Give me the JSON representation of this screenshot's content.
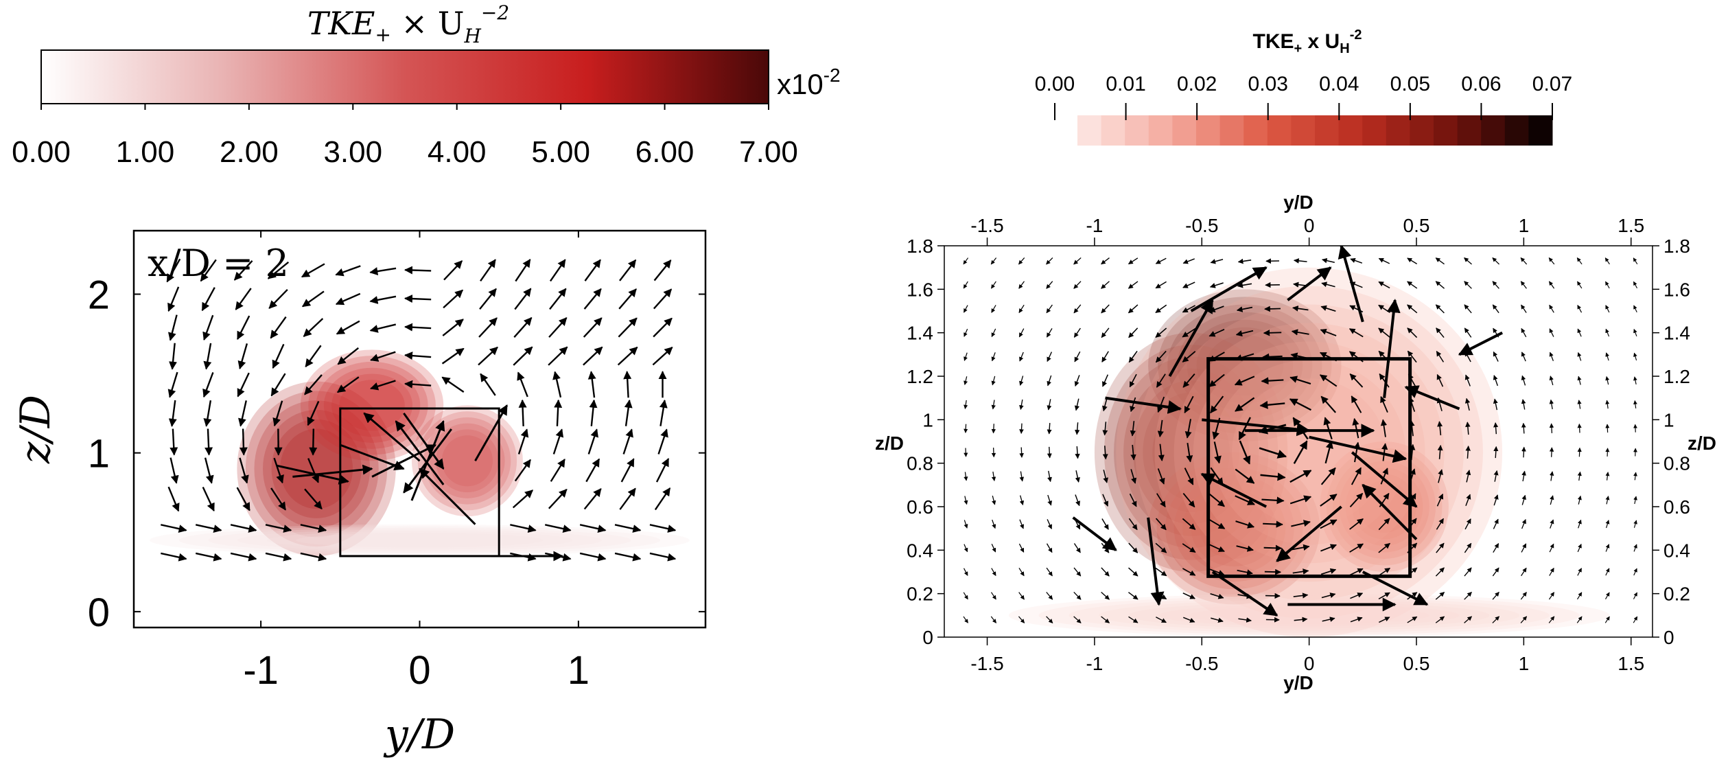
{
  "chart_data": [
    {
      "type": "heatmap",
      "panel": "left",
      "colorbar": {
        "title": "TKE",
        "title_sub": "+",
        "title_mid": " × U",
        "title_sub2": "H",
        "title_sup": "−2",
        "multiplier_base": "x10",
        "multiplier_exp": "-2",
        "ticks": [
          "0.00",
          "1.00",
          "2.00",
          "3.00",
          "4.00",
          "5.00",
          "6.00",
          "7.00"
        ],
        "range": [
          0,
          7
        ],
        "colors": [
          "#ffffff",
          "#e9b3b3",
          "#d45555",
          "#c81e1e",
          "#4a0808"
        ]
      },
      "annotation": "x/D = 2",
      "xlabel": "y/D",
      "ylabel": "z/D",
      "xlim": [
        -1.8,
        1.8
      ],
      "ylim": [
        -0.1,
        2.4
      ],
      "xticks": [
        {
          "v": -1,
          "label": "-1"
        },
        {
          "v": 0,
          "label": "0"
        },
        {
          "v": 1,
          "label": "1"
        }
      ],
      "yticks": [
        {
          "v": 0,
          "label": "0"
        },
        {
          "v": 1,
          "label": "1"
        },
        {
          "v": 2,
          "label": "2"
        }
      ],
      "box": {
        "y": [
          -0.5,
          0.5
        ],
        "z": [
          0.35,
          1.28
        ]
      },
      "tke_blobs": [
        {
          "y": -0.65,
          "z": 0.9,
          "ry": 0.5,
          "rz": 0.55,
          "value": 5.6
        },
        {
          "y": -0.3,
          "z": 1.3,
          "ry": 0.45,
          "rz": 0.35,
          "value": 4.8
        },
        {
          "y": 0.3,
          "z": 0.95,
          "ry": 0.35,
          "rz": 0.35,
          "value": 3.8
        },
        {
          "y": 0.0,
          "z": 0.45,
          "ry": 1.7,
          "rz": 0.1,
          "value": 0.6
        }
      ],
      "vectors": [
        {
          "y": -0.9,
          "z": 0.92,
          "u": 0.45,
          "w": -0.1
        },
        {
          "y": -0.8,
          "z": 0.85,
          "u": 0.5,
          "w": 0.05
        },
        {
          "y": -0.3,
          "z": 0.85,
          "u": 0.4,
          "w": 0.2
        },
        {
          "y": 0.15,
          "z": 0.8,
          "u": -0.3,
          "w": 0.4
        },
        {
          "y": 0.35,
          "z": 0.55,
          "u": -0.35,
          "w": 0.35
        },
        {
          "y": -0.05,
          "z": 0.7,
          "u": 0.2,
          "w": 0.5
        },
        {
          "y": 0.2,
          "z": 1.15,
          "u": -0.3,
          "w": -0.4
        },
        {
          "y": -0.1,
          "z": 1.25,
          "u": 0.25,
          "w": -0.35
        },
        {
          "y": -0.5,
          "z": 1.05,
          "u": 0.4,
          "w": -0.15
        },
        {
          "y": 0.0,
          "z": 0.95,
          "u": -0.35,
          "w": 0.3
        },
        {
          "y": 0.45,
          "z": 0.35,
          "u": 0.45,
          "w": 0.0
        },
        {
          "y": 0.35,
          "z": 0.95,
          "u": 0.2,
          "w": 0.35
        }
      ]
    },
    {
      "type": "heatmap",
      "panel": "right",
      "colorbar": {
        "title": "TKE",
        "title_sub": "+",
        "title_mid": " x U",
        "title_sub2": "H",
        "title_sup": "-2",
        "ticks": [
          "0.00",
          "0.01",
          "0.02",
          "0.03",
          "0.04",
          "0.05",
          "0.06",
          "0.07"
        ],
        "range": [
          0,
          0.07
        ],
        "levels": 20,
        "colors": [
          "#fde9e6",
          "#f4a89c",
          "#de5a45",
          "#b82c1f",
          "#6e120c",
          "#000000"
        ]
      },
      "xlabel": "y/D",
      "ylabel": "z/D",
      "xlim": [
        -1.7,
        1.6
      ],
      "ylim": [
        0,
        1.8
      ],
      "xticks": [
        {
          "v": -1.5,
          "label": "-1.5"
        },
        {
          "v": -1,
          "label": "-1"
        },
        {
          "v": -0.5,
          "label": "-0.5"
        },
        {
          "v": 0,
          "label": "0"
        },
        {
          "v": 0.5,
          "label": "0.5"
        },
        {
          "v": 1,
          "label": "1"
        },
        {
          "v": 1.5,
          "label": "1.5"
        }
      ],
      "yticks": [
        {
          "v": 0,
          "label": "0"
        },
        {
          "v": 0.2,
          "label": "0.2"
        },
        {
          "v": 0.4,
          "label": "0.4"
        },
        {
          "v": 0.6,
          "label": "0.6"
        },
        {
          "v": 0.8,
          "label": "0.8"
        },
        {
          "v": 1,
          "label": "1"
        },
        {
          "v": 1.2,
          "label": "1.2"
        },
        {
          "v": 1.4,
          "label": "1.4"
        },
        {
          "v": 1.6,
          "label": "1.6"
        },
        {
          "v": 1.8,
          "label": "1.8"
        }
      ],
      "box": {
        "y": [
          -0.47,
          0.47
        ],
        "z": [
          0.28,
          1.28
        ]
      },
      "tke_blobs": [
        {
          "y": -0.3,
          "z": 1.25,
          "ry": 0.45,
          "rz": 0.35,
          "value": 0.058
        },
        {
          "y": -0.55,
          "z": 0.85,
          "ry": 0.45,
          "rz": 0.55,
          "value": 0.05
        },
        {
          "y": -0.35,
          "z": 0.5,
          "ry": 0.4,
          "rz": 0.35,
          "value": 0.042
        },
        {
          "y": 0.35,
          "z": 0.6,
          "ry": 0.3,
          "rz": 0.3,
          "value": 0.028
        },
        {
          "y": 0.0,
          "z": 0.85,
          "ry": 0.9,
          "rz": 0.85,
          "value": 0.014
        },
        {
          "y": 0.0,
          "z": 0.1,
          "ry": 1.4,
          "rz": 0.1,
          "value": 0.004
        }
      ],
      "vectors": [
        {
          "y": -0.5,
          "z": 1.0,
          "u": 0.5,
          "w": -0.05
        },
        {
          "y": -0.3,
          "z": 0.95,
          "u": 0.6,
          "w": 0.0
        },
        {
          "y": 0.0,
          "z": 0.92,
          "u": 0.45,
          "w": -0.1
        },
        {
          "y": 0.2,
          "z": 0.85,
          "u": 0.3,
          "w": -0.25
        },
        {
          "y": 0.35,
          "z": 1.1,
          "u": 0.05,
          "w": 0.45
        },
        {
          "y": 0.25,
          "z": 1.45,
          "u": -0.1,
          "w": 0.35
        },
        {
          "y": -0.1,
          "z": 1.55,
          "u": 0.2,
          "w": 0.15
        },
        {
          "y": -0.55,
          "z": 1.5,
          "u": 0.35,
          "w": 0.2
        },
        {
          "y": -0.65,
          "z": 1.2,
          "u": 0.2,
          "w": 0.35
        },
        {
          "y": -0.75,
          "z": 0.55,
          "u": 0.05,
          "w": -0.4
        },
        {
          "y": -0.45,
          "z": 0.3,
          "u": 0.3,
          "w": -0.2
        },
        {
          "y": -0.1,
          "z": 0.15,
          "u": 0.5,
          "w": 0.0
        },
        {
          "y": 0.25,
          "z": 0.3,
          "u": 0.3,
          "w": -0.15
        },
        {
          "y": 0.5,
          "z": 0.45,
          "u": -0.25,
          "w": 0.25
        },
        {
          "y": 0.15,
          "z": 0.6,
          "u": -0.3,
          "w": -0.25
        },
        {
          "y": -0.2,
          "z": 0.6,
          "u": -0.3,
          "w": 0.15
        },
        {
          "y": -0.95,
          "z": 1.1,
          "u": 0.35,
          "w": -0.05
        },
        {
          "y": 0.7,
          "z": 1.05,
          "u": -0.25,
          "w": 0.1
        },
        {
          "y": -1.1,
          "z": 0.55,
          "u": 0.2,
          "w": -0.15
        },
        {
          "y": 0.9,
          "z": 1.4,
          "u": -0.2,
          "w": -0.1
        }
      ]
    }
  ]
}
